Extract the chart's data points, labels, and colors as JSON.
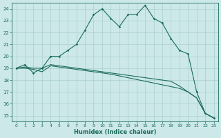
{
  "xlabel": "Humidex (Indice chaleur)",
  "x": [
    0,
    1,
    2,
    3,
    4,
    5,
    6,
    7,
    8,
    9,
    10,
    11,
    12,
    13,
    14,
    15,
    16,
    17,
    18,
    19,
    20,
    21,
    22,
    23
  ],
  "line1": [
    19.0,
    19.3,
    18.6,
    19.0,
    20.0,
    20.0,
    20.5,
    21.0,
    22.2,
    23.5,
    24.0,
    23.2,
    22.5,
    23.5,
    23.5,
    24.3,
    23.2,
    22.8,
    21.5,
    20.5,
    20.2,
    17.0,
    15.2,
    14.8
  ],
  "line2": [
    19.0,
    19.1,
    19.0,
    19.0,
    19.3,
    19.2,
    19.1,
    19.0,
    18.9,
    18.8,
    18.7,
    18.6,
    18.5,
    18.4,
    18.3,
    18.2,
    18.1,
    18.0,
    17.9,
    17.5,
    17.0,
    16.5,
    15.2,
    14.8
  ],
  "line3": [
    19.0,
    19.0,
    18.9,
    18.7,
    19.2,
    19.1,
    19.0,
    18.9,
    18.8,
    18.7,
    18.6,
    18.5,
    18.35,
    18.2,
    18.05,
    17.9,
    17.75,
    17.6,
    17.45,
    17.3,
    17.0,
    16.5,
    15.2,
    14.8
  ],
  "line_color": "#1a6b5a",
  "bg_color": "#cce8e8",
  "grid_color": "#aacfcf",
  "yticks": [
    15,
    16,
    17,
    18,
    19,
    20,
    21,
    22,
    23,
    24
  ],
  "xticks": [
    0,
    1,
    2,
    3,
    4,
    5,
    6,
    7,
    8,
    9,
    10,
    11,
    12,
    13,
    14,
    15,
    16,
    17,
    18,
    19,
    20,
    21,
    22,
    23
  ]
}
